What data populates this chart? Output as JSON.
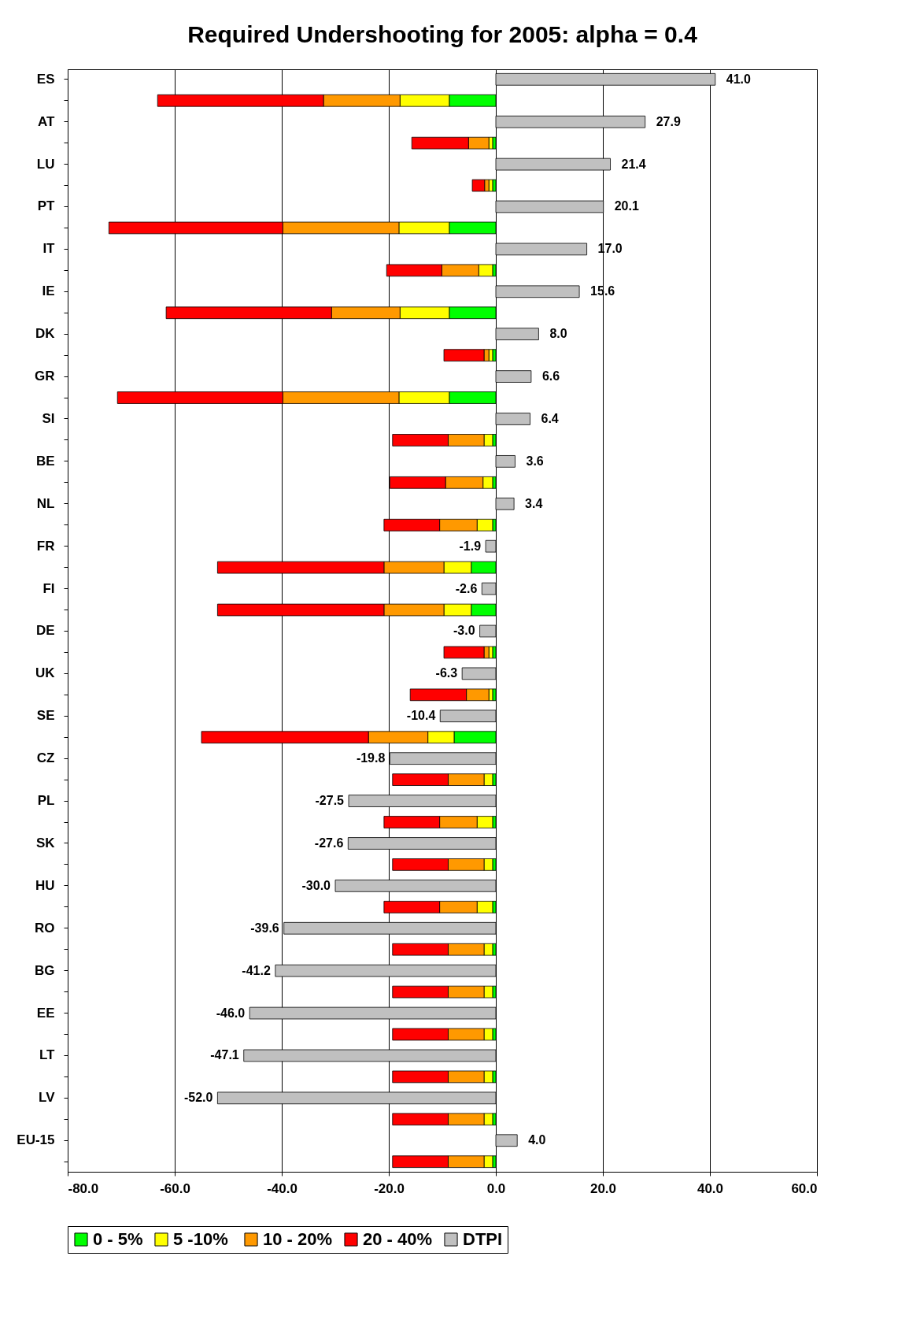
{
  "chart_data": {
    "type": "bar",
    "orientation": "horizontal",
    "stacked": true,
    "title": "Required Undershooting for 2005: alpha = 0.4",
    "categories": [
      "ES",
      null,
      "AT",
      null,
      "LU",
      null,
      "PT",
      null,
      "IT",
      null,
      "IE",
      null,
      "DK",
      null,
      "GR",
      null,
      "SI",
      null,
      "BE",
      null,
      "NL",
      null,
      "FR",
      null,
      "FI",
      null,
      "DE",
      null,
      "UK",
      null,
      "SE",
      null,
      "CZ",
      null,
      "PL",
      null,
      "SK",
      null,
      "HU",
      null,
      "RO",
      null,
      "BG",
      null,
      "EE",
      null,
      "LT",
      null,
      "LV",
      null,
      "EU-15",
      null
    ],
    "series": [
      {
        "name": "0 - 5%",
        "color": "#00ff00",
        "values": [
          null,
          -8.7,
          null,
          -0.6,
          null,
          -0.6,
          null,
          -8.7,
          null,
          -0.6,
          null,
          -8.7,
          null,
          -0.6,
          null,
          -8.7,
          null,
          -0.6,
          null,
          -0.6,
          null,
          -0.6,
          null,
          -4.6,
          null,
          -4.6,
          null,
          -0.6,
          null,
          -0.6,
          null,
          -7.8,
          null,
          -0.6,
          null,
          -0.6,
          null,
          -0.6,
          null,
          -0.6,
          null,
          -0.6,
          null,
          -0.6,
          null,
          -0.6,
          null,
          -0.6,
          null,
          -0.6,
          null,
          -0.6
        ]
      },
      {
        "name": "5  -10%",
        "color": "#ffff00",
        "values": [
          null,
          -9.2,
          null,
          -0.7,
          null,
          -0.7,
          null,
          -9.4,
          null,
          -2.6,
          null,
          -9.2,
          null,
          -0.7,
          null,
          -9.4,
          null,
          -1.6,
          null,
          -1.8,
          null,
          -2.9,
          null,
          -5.1,
          null,
          -5.1,
          null,
          -0.7,
          null,
          -0.7,
          null,
          -4.9,
          null,
          -1.6,
          null,
          -2.9,
          null,
          -1.6,
          null,
          -2.9,
          null,
          -1.6,
          null,
          -1.6,
          null,
          -1.6,
          null,
          -1.6,
          null,
          -1.6,
          null,
          -1.6
        ]
      },
      {
        "name": "10 - 20%",
        "color": "#ff9900",
        "values": [
          null,
          -14.3,
          null,
          -3.8,
          null,
          -0.8,
          null,
          -21.7,
          null,
          -6.9,
          null,
          -12.8,
          null,
          -0.9,
          null,
          -21.7,
          null,
          -6.7,
          null,
          -7.0,
          null,
          -7.0,
          null,
          -11.2,
          null,
          -11.2,
          null,
          -0.9,
          null,
          -4.2,
          null,
          -11.1,
          null,
          -6.7,
          null,
          -7.0,
          null,
          -6.7,
          null,
          -7.0,
          null,
          -6.7,
          null,
          -6.7,
          null,
          -6.7,
          null,
          -6.7,
          null,
          -6.7,
          null,
          -6.7
        ]
      },
      {
        "name": "20 - 40%",
        "color": "#ff0000",
        "values": [
          null,
          -31.0,
          null,
          -10.6,
          null,
          -2.3,
          null,
          -32.5,
          null,
          -10.3,
          null,
          -30.9,
          null,
          -7.5,
          null,
          -30.9,
          null,
          -10.4,
          null,
          -10.4,
          null,
          -10.4,
          null,
          -31.1,
          null,
          -31.1,
          null,
          -7.5,
          null,
          -10.5,
          null,
          -31.2,
          null,
          -10.4,
          null,
          -10.4,
          null,
          -10.4,
          null,
          -10.4,
          null,
          -10.4,
          null,
          -10.4,
          null,
          -10.4,
          null,
          -10.4,
          null,
          -10.4,
          null,
          -10.4
        ]
      },
      {
        "name": "DTPI",
        "color": "#c0c0c0",
        "values": [
          41.0,
          null,
          27.9,
          null,
          21.4,
          null,
          20.1,
          null,
          17.0,
          null,
          15.6,
          null,
          8.0,
          null,
          6.6,
          null,
          6.4,
          null,
          3.6,
          null,
          3.4,
          null,
          -1.9,
          null,
          -2.6,
          null,
          -3.0,
          null,
          -6.3,
          null,
          -10.4,
          null,
          -19.8,
          null,
          -27.5,
          null,
          -27.6,
          null,
          -30.0,
          null,
          -39.6,
          null,
          -41.2,
          null,
          -46.0,
          null,
          -47.1,
          null,
          -52.0,
          null,
          4.0,
          null
        ],
        "value_labels": [
          "41.0",
          null,
          "27.9",
          null,
          "21.4",
          null,
          "20.1",
          null,
          "17.0",
          null,
          "15.6",
          null,
          "8.0",
          null,
          "6.6",
          null,
          "6.4",
          null,
          "3.6",
          null,
          "3.4",
          null,
          "-1.9",
          null,
          "-2.6",
          null,
          "-3.0",
          null,
          "-6.3",
          null,
          "-10.4",
          null,
          "-19.8",
          null,
          "-27.5",
          null,
          "-27.6",
          null,
          "-30.0",
          null,
          "-39.6",
          null,
          "-41.2",
          null,
          "-46.0",
          null,
          "-47.1",
          null,
          "-52.0",
          null,
          "4.0",
          null
        ]
      }
    ],
    "xlim": [
      -80,
      60
    ],
    "xticks": [
      {
        "value": -80,
        "label": "-80.0"
      },
      {
        "value": -60,
        "label": "-60.0"
      },
      {
        "value": -40,
        "label": "-40.0"
      },
      {
        "value": -20,
        "label": "-20.0"
      },
      {
        "value": 0,
        "label": "0.0"
      },
      {
        "value": 20,
        "label": "20.0"
      },
      {
        "value": 40,
        "label": "40.0"
      },
      {
        "value": 60,
        "label": "60.0"
      }
    ],
    "grid": "x",
    "legend": "bottom"
  }
}
